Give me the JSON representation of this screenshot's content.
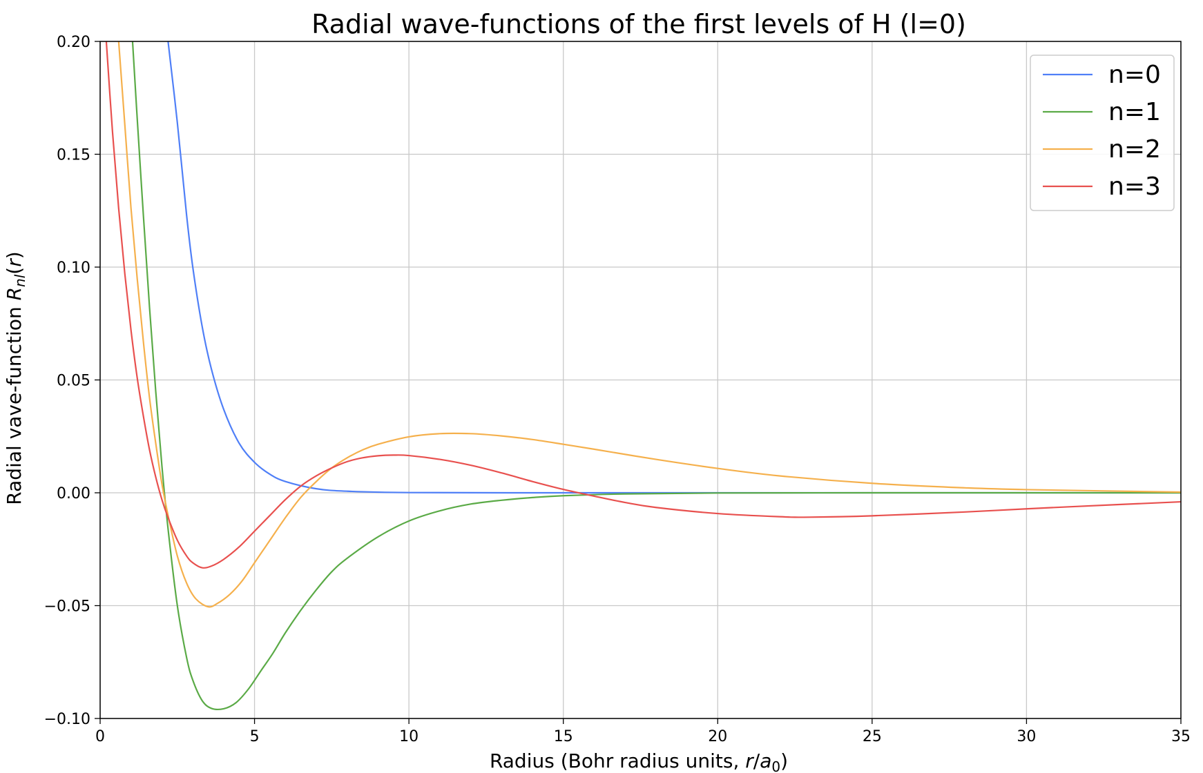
{
  "chart_data": {
    "type": "line",
    "title": "Radial wave-functions of the first levels of H (l=0)",
    "xlabel": "Radius (Bohr radius units, r/a₀)",
    "ylabel": "Radial vave-function R_nl(r)",
    "xlim": [
      0,
      35
    ],
    "ylim": [
      -0.1,
      0.2
    ],
    "x_ticks": [
      0,
      5,
      10,
      15,
      20,
      25,
      30,
      35
    ],
    "x_tick_labels": [
      "0",
      "5",
      "10",
      "15",
      "20",
      "25",
      "30",
      "35"
    ],
    "y_ticks": [
      -0.1,
      -0.05,
      0.0,
      0.05,
      0.1,
      0.15,
      0.2
    ],
    "y_tick_labels": [
      "−0.10",
      "−0.05",
      "0.00",
      "0.05",
      "0.10",
      "0.15",
      "0.20"
    ],
    "grid": true,
    "legend": "top-right",
    "series": [
      {
        "name": "n=0",
        "color": "#4f7ff7",
        "x": [
          2.2,
          2.5,
          2.8,
          3.0,
          3.3,
          3.6,
          4.0,
          4.5,
          5.0,
          5.5,
          6.0,
          7.0,
          8.0,
          10.0,
          15.0,
          20.0,
          25.0,
          30.0,
          35.0
        ],
        "y": [
          0.2,
          0.164,
          0.123,
          0.1,
          0.074,
          0.055,
          0.037,
          0.022,
          0.0135,
          0.0082,
          0.005,
          0.0018,
          0.0007,
          0.0001,
          0.0,
          0.0,
          0.0,
          0.0,
          0.0
        ]
      },
      {
        "name": "n=1",
        "color": "#5aaa46",
        "x": [
          1.05,
          1.2,
          1.4,
          1.6,
          1.8,
          2.0,
          2.2,
          2.5,
          2.8,
          3.0,
          3.3,
          3.6,
          4.0,
          4.4,
          4.8,
          5.2,
          5.6,
          6.0,
          6.5,
          7.0,
          7.5,
          8.0,
          9.0,
          10.0,
          11.0,
          12.0,
          13.0,
          14.0,
          15.0,
          17.0,
          20.0,
          25.0,
          30.0,
          35.0
        ],
        "y": [
          0.2,
          0.166,
          0.123,
          0.082,
          0.045,
          0.012,
          -0.016,
          -0.05,
          -0.073,
          -0.083,
          -0.092,
          -0.0955,
          -0.0957,
          -0.093,
          -0.087,
          -0.079,
          -0.071,
          -0.062,
          -0.052,
          -0.043,
          -0.035,
          -0.029,
          -0.0195,
          -0.0125,
          -0.008,
          -0.005,
          -0.0033,
          -0.0021,
          -0.0013,
          -0.0005,
          -0.0001,
          0.0,
          0.0,
          0.0
        ]
      },
      {
        "name": "n=2",
        "color": "#f5b04c",
        "x": [
          0.6,
          0.8,
          1.0,
          1.2,
          1.4,
          1.6,
          1.8,
          2.0,
          2.2,
          2.5,
          2.8,
          3.1,
          3.5,
          3.8,
          4.2,
          4.6,
          5.0,
          5.5,
          6.0,
          6.5,
          7.0,
          7.5,
          8.0,
          8.5,
          9.0,
          10.0,
          11.0,
          12.0,
          13.0,
          14.0,
          15.0,
          16.0,
          18.0,
          20.0,
          22.0,
          25.0,
          28.0,
          30.0,
          35.0
        ],
        "y": [
          0.2,
          0.163,
          0.126,
          0.095,
          0.067,
          0.042,
          0.022,
          0.004,
          -0.01,
          -0.028,
          -0.04,
          -0.047,
          -0.0505,
          -0.049,
          -0.045,
          -0.039,
          -0.031,
          -0.021,
          -0.011,
          -0.002,
          0.005,
          0.011,
          0.0155,
          0.019,
          0.0215,
          0.0248,
          0.0262,
          0.0262,
          0.0252,
          0.0236,
          0.0215,
          0.0193,
          0.0148,
          0.0108,
          0.0075,
          0.0042,
          0.0022,
          0.0014,
          0.0003
        ]
      },
      {
        "name": "n=3",
        "color": "#e8504e",
        "x": [
          0.2,
          0.4,
          0.6,
          0.8,
          1.0,
          1.2,
          1.4,
          1.6,
          1.8,
          2.0,
          2.2,
          2.5,
          2.8,
          3.0,
          3.3,
          3.6,
          4.0,
          4.5,
          5.0,
          5.5,
          6.0,
          6.5,
          7.0,
          7.5,
          8.0,
          8.5,
          9.0,
          9.5,
          10.0,
          11.0,
          12.0,
          13.0,
          14.0,
          15.0,
          16.0,
          17.0,
          18.0,
          20.0,
          22.0,
          23.0,
          25.0,
          28.0,
          30.0,
          33.0,
          35.0
        ],
        "y": [
          0.2,
          0.16,
          0.126,
          0.097,
          0.072,
          0.051,
          0.034,
          0.019,
          0.007,
          -0.003,
          -0.011,
          -0.021,
          -0.028,
          -0.031,
          -0.0332,
          -0.0325,
          -0.0295,
          -0.024,
          -0.017,
          -0.01,
          -0.003,
          0.003,
          0.0075,
          0.011,
          0.0138,
          0.0155,
          0.0164,
          0.0167,
          0.0165,
          0.0148,
          0.0122,
          0.0088,
          0.005,
          0.0015,
          -0.0015,
          -0.0043,
          -0.0065,
          -0.0092,
          -0.0106,
          -0.0108,
          -0.0102,
          -0.0085,
          -0.0071,
          -0.0052,
          -0.004
        ]
      }
    ]
  }
}
